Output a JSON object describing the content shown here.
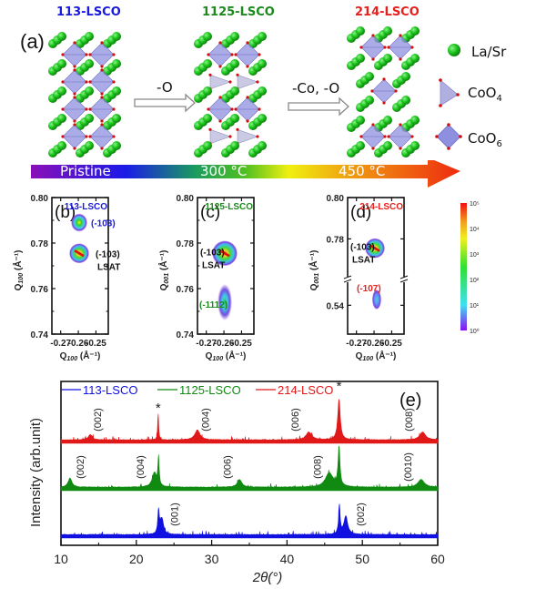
{
  "figure": {
    "panel_a": {
      "label": "(a)",
      "structures": [
        {
          "title": "113-LSCO",
          "color": "#1a1adc"
        },
        {
          "title": "1125-LSCO",
          "color": "#1a8a1a"
        },
        {
          "title": "214-LSCO",
          "color": "#e8201c"
        }
      ],
      "transitions": [
        "-O",
        "-Co, -O"
      ],
      "legend": [
        {
          "label": "La/Sr",
          "icon": "green-sphere-icon"
        },
        {
          "label": "CoO",
          "sub": "4",
          "icon": "tetrahedron-icon"
        },
        {
          "label": "CoO",
          "sub": "6",
          "icon": "octahedron-icon"
        }
      ],
      "temperature_bar": [
        "Pristine",
        "300 °C",
        "450 °C"
      ]
    },
    "colorbar": {
      "ticks": [
        "10⁰",
        "10¹",
        "10²",
        "10³",
        "10⁴",
        "10⁵"
      ]
    }
  },
  "chart_data": [
    {
      "type": "heatmap",
      "panel": "(b)",
      "title": "113-LSCO",
      "title_color": "#1a1adc",
      "xlabel": "Q100 (Å⁻¹)",
      "ylabel": "Q100 (Å⁻¹)",
      "xlim": [
        -0.275,
        -0.243
      ],
      "ylim": [
        0.74,
        0.8
      ],
      "xticks": [
        "-0.27",
        "-0.26",
        "-0.25"
      ],
      "yticks": [
        "0.74",
        "0.76",
        "0.78",
        "0.80"
      ],
      "peaks": [
        {
          "label": "(-103)",
          "color": "#1a1adc",
          "qx": -0.2595,
          "qz": 0.789,
          "intensity": "high"
        },
        {
          "label": "(-103)",
          "sublabel": "LSAT",
          "color": "#111111",
          "qx": -0.2595,
          "qz": 0.7755,
          "intensity": "very-high"
        }
      ]
    },
    {
      "type": "heatmap",
      "panel": "(c)",
      "title": "1125-LSCO",
      "title_color": "#1a8a1a",
      "xlabel": "Q100 (Å⁻¹)",
      "ylabel": "Q001 (Å⁻¹)",
      "xlim": [
        -0.275,
        -0.243
      ],
      "ylim": [
        0.74,
        0.8
      ],
      "xticks": [
        "-0.27",
        "-0.26",
        "-0.25"
      ],
      "yticks": [
        "0.74",
        "0.76",
        "0.78",
        "0.80"
      ],
      "peaks": [
        {
          "label": "(-103)",
          "sublabel": "LSAT",
          "color": "#111111",
          "qx": -0.2595,
          "qz": 0.7755,
          "intensity": "very-high"
        },
        {
          "label": "(-1112)",
          "color": "#1a8a1a",
          "qx": -0.2595,
          "qz": 0.754,
          "intensity": "medium"
        }
      ]
    },
    {
      "type": "heatmap",
      "panel": "(d)",
      "title": "214-LSCO",
      "title_color": "#e8201c",
      "xlabel": "Q100 (Å⁻¹)",
      "ylabel": "Q001 (Å⁻¹)",
      "xlim": [
        -0.275,
        -0.243
      ],
      "ylim_broken": [
        [
          0.53,
          0.545
        ],
        [
          0.765,
          0.8
        ]
      ],
      "xticks": [
        "-0.27",
        "-0.26",
        "-0.25"
      ],
      "yticks": [
        "0.54",
        "0.78",
        "0.80"
      ],
      "peaks": [
        {
          "label": "(-103)",
          "sublabel": "LSAT",
          "color": "#111111",
          "qx": -0.2595,
          "qz": 0.7755,
          "intensity": "very-high"
        },
        {
          "label": "(-107)",
          "color": "#e8201c",
          "qx": -0.2585,
          "qz": 0.542,
          "intensity": "low"
        }
      ]
    },
    {
      "type": "line",
      "panel": "(e)",
      "xlabel": "2θ(°)",
      "ylabel": "Intensity (arb.unit)",
      "xlim": [
        10,
        60
      ],
      "xticks": [
        "10",
        "20",
        "30",
        "40",
        "50",
        "60"
      ],
      "legend": [
        "113-LSCO",
        "1125-LSCO",
        "214-LSCO"
      ],
      "legend_position": "top",
      "substrate_marker": "*",
      "substrate_peaks": [
        22.9,
        46.9
      ],
      "series": [
        {
          "name": "113-LSCO",
          "color": "#1010e0",
          "offset": 0,
          "baseline": 0.12,
          "noise": 0.05,
          "peaks": [
            {
              "x": 22.95,
              "h": 0.9,
              "w": 0.12
            },
            {
              "x": 23.4,
              "h": 0.6,
              "w": 0.25
            },
            {
              "x": 46.95,
              "h": 1.1,
              "w": 0.12
            },
            {
              "x": 47.8,
              "h": 0.7,
              "w": 0.3
            }
          ],
          "peak_labels": [
            {
              "text": "(001)",
              "x": 25.5
            },
            {
              "text": "(002)",
              "x": 50.2
            }
          ]
        },
        {
          "name": "1125-LSCO",
          "color": "#108a10",
          "offset": 1,
          "baseline": 0.12,
          "noise": 0.05,
          "peaks": [
            {
              "x": 11.2,
              "h": 0.35,
              "w": 0.3
            },
            {
              "x": 22.4,
              "h": 0.55,
              "w": 0.35
            },
            {
              "x": 22.95,
              "h": 1.1,
              "w": 0.1
            },
            {
              "x": 33.7,
              "h": 0.3,
              "w": 0.35
            },
            {
              "x": 45.6,
              "h": 0.55,
              "w": 0.6
            },
            {
              "x": 46.9,
              "h": 1.5,
              "w": 0.15
            },
            {
              "x": 57.8,
              "h": 0.3,
              "w": 0.5
            }
          ],
          "peak_labels": [
            {
              "text": "(002)",
              "x": 13.0
            },
            {
              "text": "(004)",
              "x": 21.0
            },
            {
              "text": "(006)",
              "x": 32.5
            },
            {
              "text": "(008)",
              "x": 44.5
            },
            {
              "text": "(0010)",
              "x": 56.5
            }
          ]
        },
        {
          "name": "214-LSCO",
          "color": "#e01818",
          "offset": 2,
          "baseline": 0.12,
          "noise": 0.05,
          "peaks": [
            {
              "x": 13.9,
              "h": 0.2,
              "w": 0.3
            },
            {
              "x": 22.9,
              "h": 1.0,
              "w": 0.08
            },
            {
              "x": 28.1,
              "h": 0.38,
              "w": 0.4
            },
            {
              "x": 42.9,
              "h": 0.3,
              "w": 0.45
            },
            {
              "x": 46.9,
              "h": 1.55,
              "w": 0.2
            },
            {
              "x": 58.0,
              "h": 0.3,
              "w": 0.45
            }
          ],
          "peak_labels": [
            {
              "text": "(002)",
              "x": 15.3
            },
            {
              "text": "(004)",
              "x": 29.6
            },
            {
              "text": "(006)",
              "x": 41.5
            },
            {
              "text": "(008)",
              "x": 56.6
            }
          ]
        }
      ],
      "panel_label": "(e)"
    }
  ]
}
